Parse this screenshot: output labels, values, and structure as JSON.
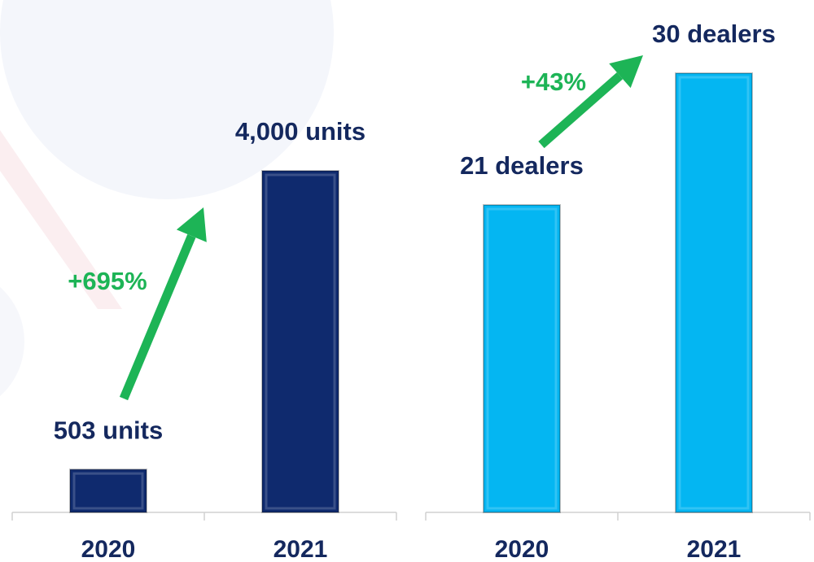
{
  "chart_data": [
    {
      "type": "bar",
      "categories": [
        "2020",
        "2021"
      ],
      "values": [
        503,
        4000
      ],
      "value_labels": [
        "503 units",
        "4,000 units"
      ],
      "annotation": "+695%",
      "color": "#0f2a6e",
      "annotation_color": "#1db456",
      "ylim": [
        0,
        6000
      ]
    },
    {
      "type": "bar",
      "categories": [
        "2020",
        "2021"
      ],
      "values": [
        21,
        30
      ],
      "value_labels": [
        "21 dealers",
        "30 dealers"
      ],
      "annotation": "+43%",
      "color": "#04b6f2",
      "annotation_color": "#1db456",
      "ylim": [
        0,
        35
      ]
    }
  ]
}
